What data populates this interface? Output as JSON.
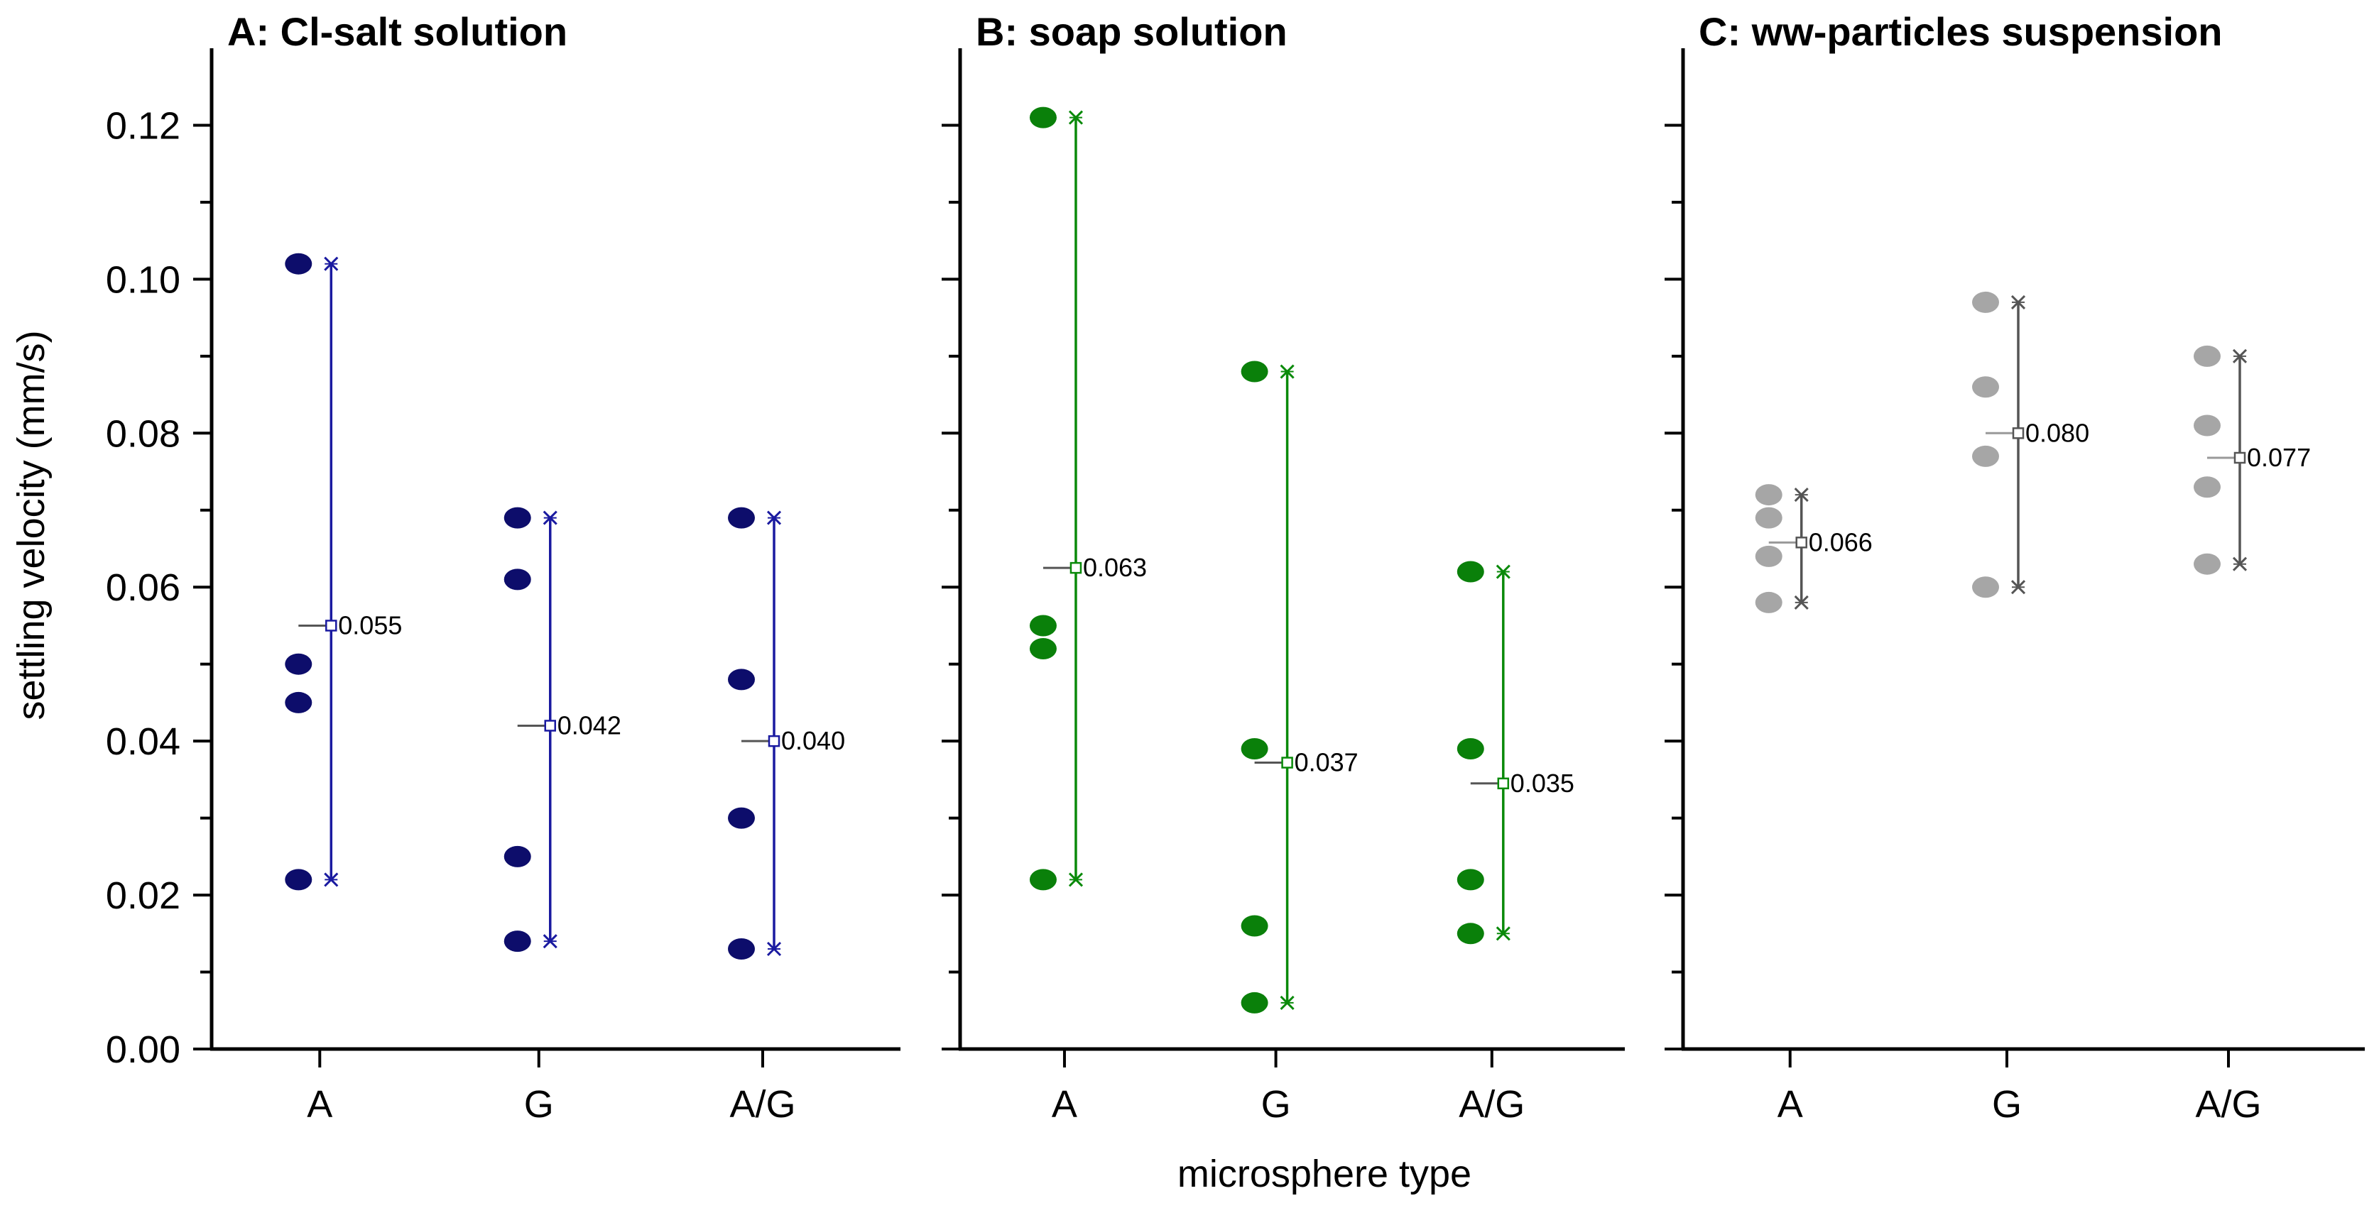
{
  "chart_data": {
    "type": "scatter",
    "ylabel": "settling velocity (mm/s)",
    "xlabel": "microsphere type",
    "categories": [
      "A",
      "G",
      "A/G"
    ],
    "ylim": [
      0,
      0.13
    ],
    "yticks": [
      "0.00",
      "0.02",
      "0.04",
      "0.06",
      "0.08",
      "0.10",
      "0.12"
    ],
    "panels": [
      {
        "title": "A: Cl-salt solution",
        "color": "#0d0d6b",
        "line_color": "#1a1aa0",
        "series": [
          {
            "category": "A",
            "points": [
              0.102,
              0.05,
              0.045,
              0.022
            ],
            "min": 0.022,
            "max": 0.102,
            "mean": 0.055,
            "mean_label": "0.055"
          },
          {
            "category": "G",
            "points": [
              0.069,
              0.061,
              0.025,
              0.014
            ],
            "min": 0.014,
            "max": 0.069,
            "mean": 0.042,
            "mean_label": "0.042"
          },
          {
            "category": "A/G",
            "points": [
              0.069,
              0.048,
              0.03,
              0.013
            ],
            "min": 0.013,
            "max": 0.069,
            "mean": 0.04,
            "mean_label": "0.040"
          }
        ]
      },
      {
        "title": "B: soap solution",
        "color": "#0a800a",
        "line_color": "#0a8a0a",
        "series": [
          {
            "category": "A",
            "points": [
              0.121,
              0.055,
              0.052,
              0.022
            ],
            "min": 0.022,
            "max": 0.121,
            "mean": 0.0625,
            "mean_label": "0.063"
          },
          {
            "category": "G",
            "points": [
              0.088,
              0.039,
              0.016,
              0.006
            ],
            "min": 0.006,
            "max": 0.088,
            "mean": 0.0372,
            "mean_label": "0.037"
          },
          {
            "category": "A/G",
            "points": [
              0.062,
              0.039,
              0.022,
              0.015
            ],
            "min": 0.015,
            "max": 0.062,
            "mean": 0.0345,
            "mean_label": "0.035"
          }
        ]
      },
      {
        "title": "C: ww-particles suspension",
        "color": "#a6a6a6",
        "line_color": "#555555",
        "series": [
          {
            "category": "A",
            "points": [
              0.072,
              0.069,
              0.064,
              0.058
            ],
            "min": 0.058,
            "max": 0.072,
            "mean": 0.0658,
            "mean_label": "0.066"
          },
          {
            "category": "G",
            "points": [
              0.097,
              0.086,
              0.077,
              0.06
            ],
            "min": 0.06,
            "max": 0.097,
            "mean": 0.08,
            "mean_label": "0.080"
          },
          {
            "category": "A/G",
            "points": [
              0.09,
              0.081,
              0.073,
              0.063
            ],
            "min": 0.063,
            "max": 0.09,
            "mean": 0.0768,
            "mean_label": "0.077"
          }
        ]
      }
    ]
  }
}
